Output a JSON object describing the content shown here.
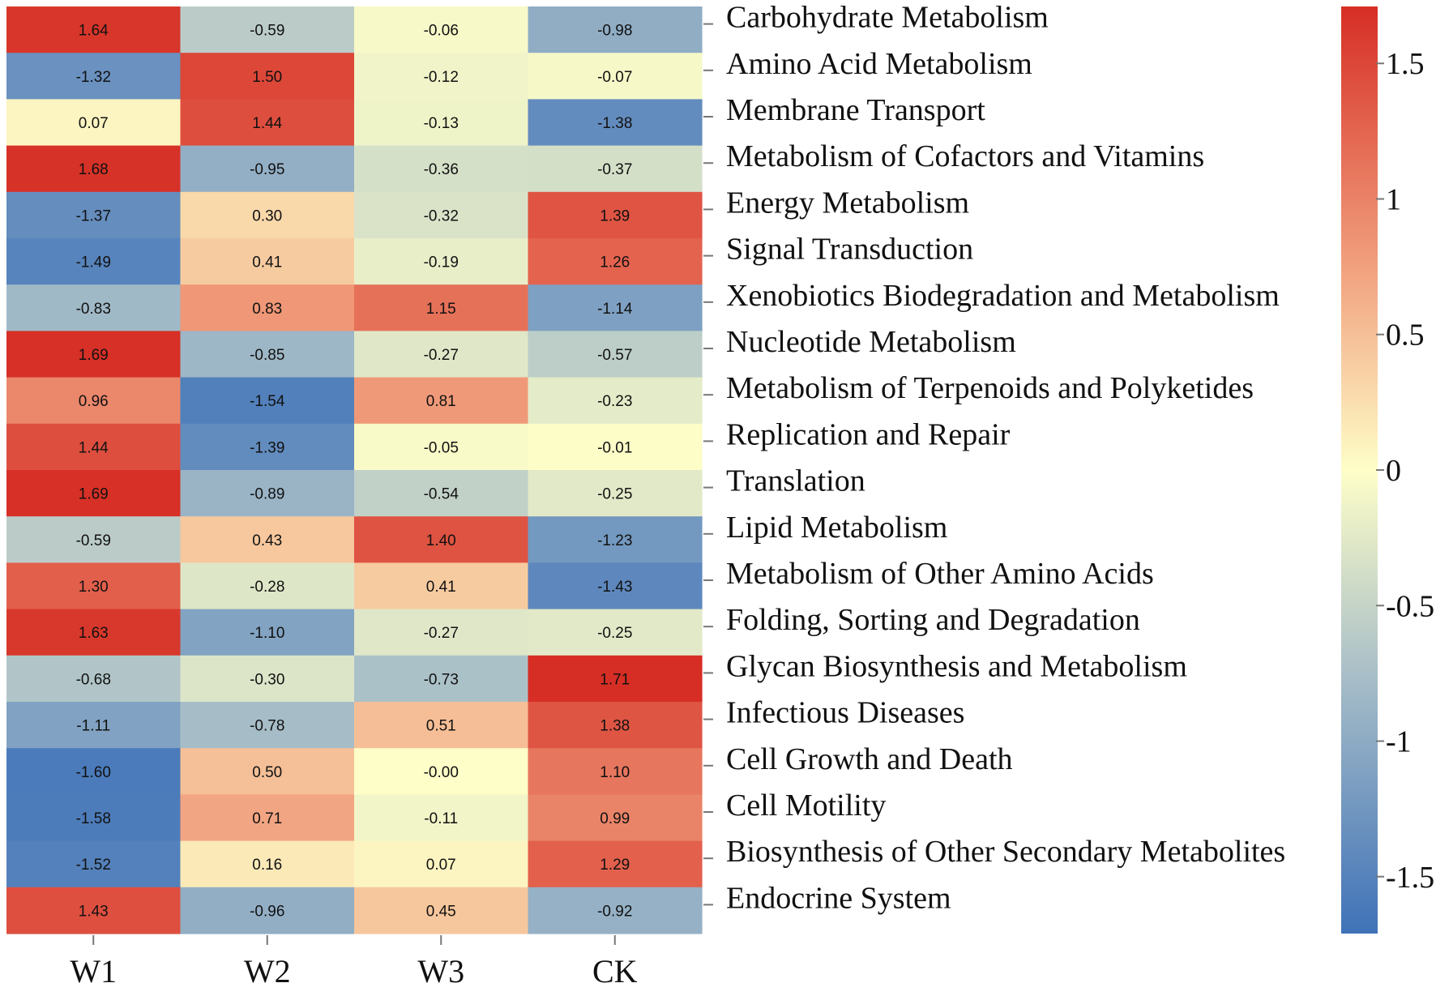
{
  "chart_data": {
    "type": "heatmap",
    "columns": [
      "W1",
      "W2",
      "W3",
      "CK"
    ],
    "rows": [
      "Carbohydrate Metabolism",
      "Amino Acid Metabolism",
      "Membrane Transport",
      "Metabolism of Cofactors and Vitamins",
      "Energy Metabolism",
      "Signal Transduction",
      "Xenobiotics Biodegradation and Metabolism",
      "Nucleotide Metabolism",
      "Metabolism of Terpenoids and Polyketides",
      "Replication and Repair",
      "Translation",
      "Lipid Metabolism",
      "Metabolism of Other Amino Acids",
      "Folding, Sorting and Degradation",
      "Glycan Biosynthesis and Metabolism",
      "Infectious Diseases",
      "Cell Growth and Death",
      "Cell Motility",
      "Biosynthesis of Other Secondary Metabolites",
      "Endocrine System"
    ],
    "values": [
      [
        1.64,
        -0.59,
        -0.06,
        -0.98
      ],
      [
        -1.32,
        1.5,
        -0.12,
        -0.07
      ],
      [
        0.07,
        1.44,
        -0.13,
        -1.38
      ],
      [
        1.68,
        -0.95,
        -0.36,
        -0.37
      ],
      [
        -1.37,
        0.3,
        -0.32,
        1.39
      ],
      [
        -1.49,
        0.41,
        -0.19,
        1.26
      ],
      [
        -0.83,
        0.83,
        1.15,
        -1.14
      ],
      [
        1.69,
        -0.85,
        -0.27,
        -0.57
      ],
      [
        0.96,
        -1.54,
        0.81,
        -0.23
      ],
      [
        1.44,
        -1.39,
        -0.05,
        -0.01
      ],
      [
        1.69,
        -0.89,
        -0.54,
        -0.25
      ],
      [
        -0.59,
        0.43,
        1.4,
        -1.23
      ],
      [
        1.3,
        -0.28,
        0.41,
        -1.43
      ],
      [
        1.63,
        -1.1,
        -0.27,
        -0.25
      ],
      [
        -0.68,
        -0.3,
        -0.73,
        1.71
      ],
      [
        -1.11,
        -0.78,
        0.51,
        1.38
      ],
      [
        -1.6,
        0.5,
        -0.0,
        1.1
      ],
      [
        -1.58,
        0.71,
        -0.11,
        0.99
      ],
      [
        -1.52,
        0.16,
        0.07,
        1.29
      ],
      [
        1.43,
        -0.96,
        0.45,
        -0.92
      ]
    ],
    "value_labels": [
      [
        "1.64",
        "-0.59",
        "-0.06",
        "-0.98"
      ],
      [
        "-1.32",
        "1.50",
        "-0.12",
        "-0.07"
      ],
      [
        "0.07",
        "1.44",
        "-0.13",
        "-1.38"
      ],
      [
        "1.68",
        "-0.95",
        "-0.36",
        "-0.37"
      ],
      [
        "-1.37",
        "0.30",
        "-0.32",
        "1.39"
      ],
      [
        "-1.49",
        "0.41",
        "-0.19",
        "1.26"
      ],
      [
        "-0.83",
        "0.83",
        "1.15",
        "-1.14"
      ],
      [
        "1.69",
        "-0.85",
        "-0.27",
        "-0.57"
      ],
      [
        "0.96",
        "-1.54",
        "0.81",
        "-0.23"
      ],
      [
        "1.44",
        "-1.39",
        "-0.05",
        "-0.01"
      ],
      [
        "1.69",
        "-0.89",
        "-0.54",
        "-0.25"
      ],
      [
        "-0.59",
        "0.43",
        "1.40",
        "-1.23"
      ],
      [
        "1.30",
        "-0.28",
        "0.41",
        "-1.43"
      ],
      [
        "1.63",
        "-1.10",
        "-0.27",
        "-0.25"
      ],
      [
        "-0.68",
        "-0.30",
        "-0.73",
        "1.71"
      ],
      [
        "-1.11",
        "-0.78",
        "0.51",
        "1.38"
      ],
      [
        "-1.60",
        "0.50",
        "-0.00",
        "1.10"
      ],
      [
        "-1.58",
        "0.71",
        "-0.11",
        "0.99"
      ],
      [
        "-1.52",
        "0.16",
        "0.07",
        "1.29"
      ],
      [
        "1.43",
        "-0.96",
        "0.45",
        "-0.92"
      ]
    ],
    "colorbar": {
      "range": [
        -1.71,
        1.71
      ],
      "ticks": [
        1.5,
        1,
        0.5,
        0,
        -0.5,
        -1,
        -1.5
      ],
      "tick_labels": [
        "1.5",
        "1",
        "0.5",
        "0",
        "-0.5",
        "-1",
        "-1.5"
      ],
      "color_stops": [
        {
          "value": -1.71,
          "color": "#3f72b8"
        },
        {
          "value": -0.75,
          "color": "#a9bfc8"
        },
        {
          "value": 0.0,
          "color": "#fefec8"
        },
        {
          "value": 0.75,
          "color": "#f1a07e"
        },
        {
          "value": 1.71,
          "color": "#d62e25"
        }
      ]
    },
    "legend_position": "right"
  }
}
